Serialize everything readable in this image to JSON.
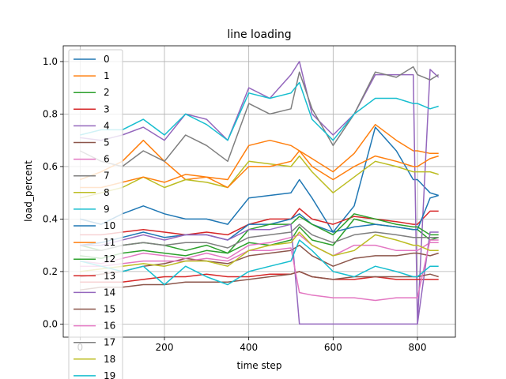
{
  "chart_data": {
    "type": "line",
    "title": "line loading",
    "xlabel": "time step",
    "ylabel": "load_percent",
    "xlim": [
      -40,
      890
    ],
    "ylim": [
      -0.05,
      1.06
    ],
    "x_ticks": [
      0,
      200,
      400,
      600,
      800
    ],
    "y_ticks": [
      0.0,
      0.2,
      0.4,
      0.6,
      0.8,
      1.0
    ],
    "grid": true,
    "legend_position": "upper-left",
    "x": [
      0,
      50,
      100,
      150,
      200,
      250,
      300,
      350,
      400,
      450,
      500,
      520,
      550,
      600,
      650,
      700,
      750,
      790,
      800,
      830,
      850
    ],
    "series": [
      {
        "name": "0",
        "color": "#1f77b4",
        "values": [
          0.4,
          0.38,
          0.42,
          0.45,
          0.42,
          0.4,
          0.4,
          0.38,
          0.48,
          0.49,
          0.5,
          0.55,
          0.48,
          0.35,
          0.45,
          0.75,
          0.66,
          0.55,
          0.55,
          0.5,
          0.49
        ]
      },
      {
        "name": "1",
        "color": "#ff7f0e",
        "values": [
          0.55,
          0.58,
          0.62,
          0.7,
          0.62,
          0.55,
          0.56,
          0.55,
          0.68,
          0.7,
          0.68,
          0.66,
          0.63,
          0.58,
          0.65,
          0.76,
          0.7,
          0.66,
          0.66,
          0.65,
          0.65
        ]
      },
      {
        "name": "2",
        "color": "#2ca02c",
        "values": [
          0.3,
          0.28,
          0.3,
          0.31,
          0.3,
          0.28,
          0.3,
          0.27,
          0.31,
          0.3,
          0.32,
          0.37,
          0.32,
          0.3,
          0.4,
          0.38,
          0.37,
          0.36,
          0.36,
          0.32,
          0.33
        ]
      },
      {
        "name": "3",
        "color": "#d62728",
        "values": [
          0.34,
          0.34,
          0.35,
          0.36,
          0.35,
          0.34,
          0.35,
          0.34,
          0.38,
          0.4,
          0.4,
          0.44,
          0.4,
          0.38,
          0.41,
          0.4,
          0.39,
          0.38,
          0.38,
          0.43,
          0.43
        ]
      },
      {
        "name": "4",
        "color": "#9467bd",
        "values": [
          0.71,
          0.7,
          0.72,
          0.75,
          0.7,
          0.8,
          0.78,
          0.7,
          0.9,
          0.86,
          0.95,
          1.0,
          0.8,
          0.72,
          0.8,
          0.95,
          0.95,
          0.95,
          0.0,
          0.97,
          0.94
        ]
      },
      {
        "name": "5",
        "color": "#8c564b",
        "values": [
          0.18,
          0.19,
          0.2,
          0.22,
          0.23,
          0.25,
          0.24,
          0.23,
          0.26,
          0.27,
          0.28,
          0.3,
          0.26,
          0.22,
          0.25,
          0.26,
          0.26,
          0.27,
          0.27,
          0.26,
          0.27
        ]
      },
      {
        "name": "6",
        "color": "#e377c2",
        "values": [
          0.24,
          0.23,
          0.25,
          0.27,
          0.26,
          0.25,
          0.27,
          0.25,
          0.3,
          0.31,
          0.33,
          0.34,
          0.3,
          0.26,
          0.3,
          0.3,
          0.28,
          0.28,
          0.28,
          0.31,
          0.31
        ]
      },
      {
        "name": "7",
        "color": "#7f7f7f",
        "values": [
          0.66,
          0.62,
          0.6,
          0.66,
          0.62,
          0.72,
          0.68,
          0.62,
          0.84,
          0.8,
          0.82,
          0.96,
          0.82,
          0.68,
          0.8,
          0.96,
          0.94,
          0.98,
          0.95,
          0.93,
          0.95
        ]
      },
      {
        "name": "8",
        "color": "#bcbd22",
        "values": [
          0.48,
          0.5,
          0.52,
          0.56,
          0.52,
          0.55,
          0.54,
          0.52,
          0.62,
          0.61,
          0.6,
          0.64,
          0.58,
          0.5,
          0.56,
          0.62,
          0.6,
          0.58,
          0.58,
          0.58,
          0.57
        ]
      },
      {
        "name": "9",
        "color": "#17becf",
        "values": [
          0.72,
          0.74,
          0.74,
          0.78,
          0.72,
          0.8,
          0.76,
          0.7,
          0.88,
          0.86,
          0.88,
          0.92,
          0.78,
          0.7,
          0.8,
          0.86,
          0.86,
          0.84,
          0.84,
          0.82,
          0.83
        ]
      },
      {
        "name": "10",
        "color": "#1f77b4",
        "values": [
          0.3,
          0.31,
          0.33,
          0.35,
          0.33,
          0.34,
          0.34,
          0.32,
          0.38,
          0.38,
          0.4,
          0.42,
          0.38,
          0.35,
          0.37,
          0.38,
          0.37,
          0.36,
          0.36,
          0.48,
          0.49
        ]
      },
      {
        "name": "11",
        "color": "#ff7f0e",
        "values": [
          0.52,
          0.52,
          0.54,
          0.56,
          0.54,
          0.57,
          0.56,
          0.52,
          0.6,
          0.6,
          0.62,
          0.66,
          0.6,
          0.55,
          0.6,
          0.64,
          0.62,
          0.6,
          0.6,
          0.63,
          0.64
        ]
      },
      {
        "name": "12",
        "color": "#2ca02c",
        "values": [
          0.26,
          0.25,
          0.27,
          0.28,
          0.27,
          0.26,
          0.28,
          0.27,
          0.36,
          0.38,
          0.38,
          0.41,
          0.38,
          0.34,
          0.42,
          0.4,
          0.38,
          0.37,
          0.37,
          0.34,
          0.34
        ]
      },
      {
        "name": "13",
        "color": "#d62728",
        "values": [
          0.16,
          0.16,
          0.16,
          0.17,
          0.18,
          0.18,
          0.19,
          0.18,
          0.18,
          0.19,
          0.19,
          0.2,
          0.18,
          0.17,
          0.17,
          0.18,
          0.17,
          0.17,
          0.17,
          0.17,
          0.17
        ]
      },
      {
        "name": "14",
        "color": "#9467bd",
        "values": [
          0.3,
          0.3,
          0.32,
          0.34,
          0.32,
          0.34,
          0.34,
          0.32,
          0.36,
          0.36,
          0.38,
          0.0,
          0.0,
          0.0,
          0.0,
          0.0,
          0.0,
          0.0,
          0.0,
          0.35,
          0.35
        ]
      },
      {
        "name": "15",
        "color": "#8c564b",
        "values": [
          0.13,
          0.14,
          0.14,
          0.15,
          0.15,
          0.16,
          0.16,
          0.16,
          0.17,
          0.18,
          0.19,
          0.2,
          0.18,
          0.17,
          0.18,
          0.18,
          0.18,
          0.18,
          0.18,
          0.19,
          0.18
        ]
      },
      {
        "name": "16",
        "color": "#e377c2",
        "values": [
          0.22,
          0.22,
          0.23,
          0.24,
          0.24,
          0.24,
          0.25,
          0.24,
          0.28,
          0.28,
          0.29,
          0.12,
          0.11,
          0.1,
          0.1,
          0.09,
          0.1,
          0.1,
          0.1,
          0.32,
          0.32
        ]
      },
      {
        "name": "17",
        "color": "#7f7f7f",
        "values": [
          0.28,
          0.28,
          0.3,
          0.31,
          0.3,
          0.31,
          0.31,
          0.29,
          0.33,
          0.34,
          0.35,
          0.38,
          0.34,
          0.31,
          0.34,
          0.35,
          0.34,
          0.33,
          0.33,
          0.33,
          0.33
        ]
      },
      {
        "name": "18",
        "color": "#bcbd22",
        "values": [
          0.2,
          0.21,
          0.22,
          0.23,
          0.22,
          0.24,
          0.24,
          0.22,
          0.28,
          0.3,
          0.31,
          0.35,
          0.3,
          0.26,
          0.28,
          0.34,
          0.32,
          0.3,
          0.3,
          0.28,
          0.28
        ]
      },
      {
        "name": "19",
        "color": "#17becf",
        "values": [
          0.24,
          0.22,
          0.2,
          0.22,
          0.15,
          0.22,
          0.18,
          0.15,
          0.2,
          0.22,
          0.24,
          0.32,
          0.28,
          0.2,
          0.18,
          0.22,
          0.2,
          0.18,
          0.18,
          0.22,
          0.22
        ]
      }
    ]
  }
}
